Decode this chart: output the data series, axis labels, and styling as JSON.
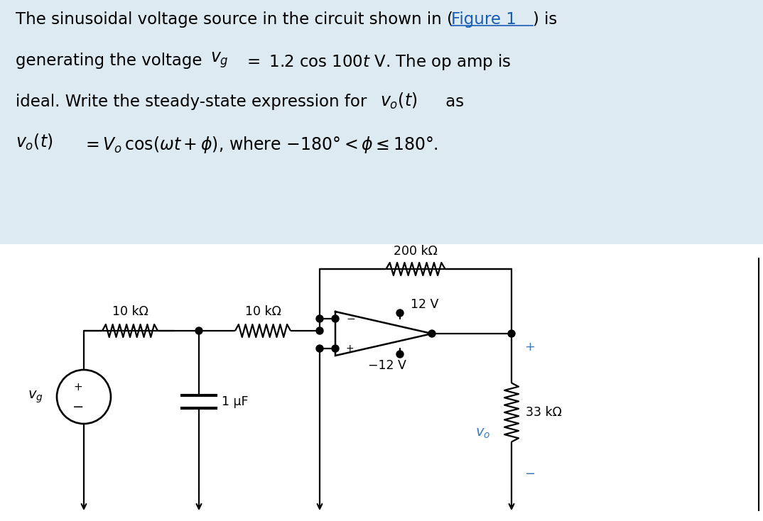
{
  "bg_color": "#ddeaf2",
  "text_color": "#000000",
  "link_color": "#1a5cb5",
  "circuit_bg": "#ffffff",
  "lw": 1.6,
  "fs_text": 16.5,
  "fs_circuit": 12.5,
  "fs_math": 17.0,
  "resistor_200k": "200 kΩ",
  "resistor_10k_1": "10 kΩ",
  "resistor_10k_2": "10 kΩ",
  "resistor_33k": "33 kΩ",
  "cap_label": "1 μF",
  "supply_pos": "12 V",
  "supply_neg": "−12 V",
  "label_vg": "$v_g$",
  "label_vo": "$v_o$",
  "plus_color": "#3a7abf",
  "minus_color": "#3a7abf"
}
